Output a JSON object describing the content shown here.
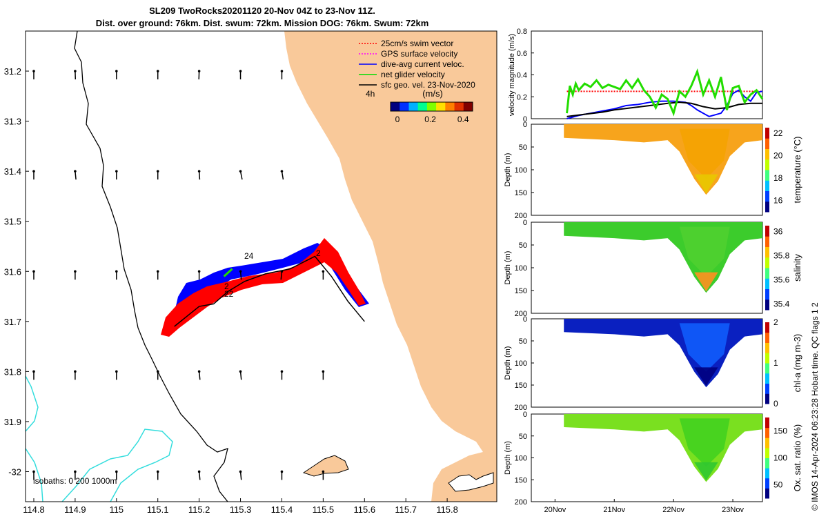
{
  "figure": {
    "title_line1": "SL209 TwoRocks20201120 20-Nov 04Z to 23-Nov 11Z.",
    "title_line2": "Dist. over ground: 76km. Dist. swum: 72km. Mission DOG: 76km. Swum: 72km",
    "credit": "© IMOS 14-Apr-2024 06:23:28 Hobart time. QC flags 1  2"
  },
  "colors": {
    "land": "#f9c99a",
    "blue_patch": "#0000ff",
    "red_patch": "#ff0000",
    "green_line": "#22dd00",
    "isobath": "#33dddd",
    "black": "#000000"
  },
  "chart_data": [
    {
      "type": "map",
      "xticks": [
        "114.8",
        "114.9",
        "115",
        "115.1",
        "115.2",
        "115.3",
        "115.4",
        "115.5",
        "115.6",
        "115.7",
        "115.8"
      ],
      "yticks": [
        "31.2",
        "31.3",
        "31.4",
        "31.5",
        "31.6",
        "31.7",
        "31.8",
        "31.9",
        "-32"
      ],
      "xlim": [
        114.78,
        115.92
      ],
      "ylim": [
        31.12,
        32.06
      ],
      "legend": [
        {
          "label": "25cm/s swim vector",
          "color": "#ff0000",
          "style": "dotted"
        },
        {
          "label": "GPS surface velocity",
          "color": "#ff00ff",
          "style": "dotted"
        },
        {
          "label": "dive-avg current veloc.",
          "color": "#0000ff",
          "style": "solid"
        },
        {
          "label": "net glider velocity",
          "color": "#00dd00",
          "style": "solid"
        },
        {
          "label": "sfc geo. vel. 23-Nov-2020",
          "color": "#000000",
          "style": "solid"
        }
      ],
      "legend_extra": "4h",
      "colorbar": {
        "label": "(m/s)",
        "ticks": [
          "0",
          "0.2",
          "0.4"
        ],
        "range": [
          0,
          0.5
        ]
      },
      "track_day_labels": [
        "24",
        "22",
        "2",
        "2"
      ],
      "isobath_label": "isobaths: 0   200  1000m",
      "track": [
        [
          115.14,
          31.71
        ],
        [
          115.17,
          31.69
        ],
        [
          115.2,
          31.67
        ],
        [
          115.235,
          31.665
        ],
        [
          115.27,
          31.64
        ],
        [
          115.31,
          31.62
        ],
        [
          115.36,
          31.605
        ],
        [
          115.42,
          31.595
        ],
        [
          115.48,
          31.57
        ],
        [
          115.52,
          31.61
        ],
        [
          115.56,
          31.66
        ],
        [
          115.6,
          31.7
        ]
      ],
      "geo_arrows": [
        [
          114.8,
          31.2,
          0,
          1
        ],
        [
          114.9,
          31.2,
          0.1,
          1
        ],
        [
          115.0,
          31.2,
          0,
          1
        ],
        [
          115.1,
          31.2,
          0,
          1
        ],
        [
          115.2,
          31.2,
          -0.1,
          1
        ],
        [
          115.3,
          31.2,
          0,
          1
        ],
        [
          115.4,
          31.2,
          0,
          1
        ],
        [
          114.8,
          31.4,
          0,
          1
        ],
        [
          114.9,
          31.4,
          0.3,
          1
        ],
        [
          115.0,
          31.4,
          0,
          1
        ],
        [
          115.1,
          31.4,
          0,
          1
        ],
        [
          115.2,
          31.4,
          0.2,
          1
        ],
        [
          115.3,
          31.4,
          0.6,
          1
        ],
        [
          115.4,
          31.4,
          0.5,
          1
        ],
        [
          114.8,
          31.6,
          0,
          1
        ],
        [
          114.9,
          31.6,
          0,
          1
        ],
        [
          115.0,
          31.6,
          0,
          1
        ],
        [
          115.1,
          31.6,
          0,
          1
        ],
        [
          115.2,
          31.6,
          0,
          1
        ],
        [
          115.3,
          31.6,
          0.3,
          1
        ],
        [
          115.4,
          31.6,
          -0.3,
          1
        ],
        [
          115.5,
          31.6,
          0,
          1
        ],
        [
          114.8,
          31.8,
          0,
          1
        ],
        [
          114.9,
          31.8,
          0,
          1
        ],
        [
          115.0,
          31.8,
          0,
          1
        ],
        [
          115.1,
          31.8,
          0,
          1
        ],
        [
          115.2,
          31.8,
          0.3,
          1
        ],
        [
          115.3,
          31.8,
          0.3,
          1
        ],
        [
          115.4,
          31.8,
          0,
          1
        ],
        [
          115.5,
          31.8,
          0,
          1
        ],
        [
          114.8,
          32.0,
          0,
          1
        ],
        [
          114.9,
          32.0,
          0,
          1
        ],
        [
          115.0,
          32.0,
          0,
          1
        ],
        [
          115.1,
          32.0,
          0,
          1
        ],
        [
          115.2,
          32.0,
          0.3,
          1
        ],
        [
          115.3,
          32.0,
          0.3,
          1
        ],
        [
          115.4,
          32.0,
          0,
          1
        ],
        [
          115.5,
          32.0,
          0,
          1
        ]
      ]
    },
    {
      "type": "line",
      "ylabel": "velocity magnitude (m/s)",
      "yticks": [
        "0",
        "0.2",
        "0.4",
        "0.6",
        "0.8"
      ],
      "ylim": [
        0,
        0.8
      ],
      "x_days": [
        20.2,
        23.5
      ],
      "series": [
        {
          "color": "#ff0000",
          "dash": "2 2",
          "x": [
            20.2,
            23.5
          ],
          "y": [
            0.25,
            0.25
          ]
        },
        {
          "color": "#0000ff",
          "x": [
            20.2,
            20.4,
            20.6,
            20.8,
            21.0,
            21.2,
            21.4,
            21.6,
            21.8,
            22.0,
            22.2,
            22.3,
            22.4,
            22.6,
            22.8,
            22.9,
            23.0,
            23.1,
            23.2,
            23.3,
            23.4,
            23.5
          ],
          "y": [
            0.0,
            0.03,
            0.05,
            0.07,
            0.09,
            0.12,
            0.13,
            0.15,
            0.16,
            0.16,
            0.15,
            0.12,
            0.08,
            0.02,
            0.05,
            0.12,
            0.23,
            0.26,
            0.2,
            0.16,
            0.24,
            0.25
          ]
        },
        {
          "color": "#000000",
          "x": [
            20.2,
            20.5,
            20.8,
            21.0,
            21.3,
            21.6,
            21.9,
            22.1,
            22.3,
            22.5,
            22.7,
            22.9,
            23.1,
            23.3,
            23.5
          ],
          "y": [
            0.02,
            0.04,
            0.06,
            0.08,
            0.1,
            0.12,
            0.14,
            0.15,
            0.14,
            0.11,
            0.09,
            0.1,
            0.13,
            0.14,
            0.14
          ]
        },
        {
          "color": "#22dd00",
          "x": [
            20.2,
            20.25,
            20.3,
            20.35,
            20.4,
            20.5,
            20.6,
            20.7,
            20.8,
            20.9,
            21.0,
            21.1,
            21.2,
            21.3,
            21.4,
            21.5,
            21.6,
            21.7,
            21.8,
            21.9,
            22.0,
            22.1,
            22.2,
            22.3,
            22.4,
            22.5,
            22.6,
            22.7,
            22.8,
            22.9,
            23.0,
            23.1,
            23.2,
            23.3,
            23.4,
            23.5
          ],
          "y": [
            0.05,
            0.3,
            0.22,
            0.32,
            0.26,
            0.32,
            0.29,
            0.35,
            0.28,
            0.31,
            0.29,
            0.27,
            0.35,
            0.28,
            0.36,
            0.26,
            0.2,
            0.1,
            0.22,
            0.18,
            0.05,
            0.25,
            0.2,
            0.3,
            0.43,
            0.22,
            0.35,
            0.2,
            0.38,
            0.08,
            0.28,
            0.3,
            0.15,
            0.22,
            0.26,
            0.18
          ]
        }
      ]
    },
    {
      "type": "heatmap",
      "ylabel": "Depth (m)",
      "cblabel": "temperature (°C)",
      "cbticks": [
        "16",
        "18",
        "20",
        "22"
      ],
      "clim": [
        15,
        22.5
      ],
      "yticks": [
        "0",
        "50",
        "100",
        "150",
        "200"
      ]
    },
    {
      "type": "heatmap",
      "ylabel": "Depth (m)",
      "cblabel": "salinity",
      "cbticks": [
        "35.4",
        "35.6",
        "35.8",
        "36"
      ],
      "clim": [
        35.35,
        36.05
      ],
      "yticks": [
        "0",
        "50",
        "100",
        "150",
        "200"
      ]
    },
    {
      "type": "heatmap",
      "ylabel": "Depth (m)",
      "cblabel": "chl-a (mg m-3)",
      "cbticks": [
        "0",
        "1",
        "2"
      ],
      "clim": [
        0,
        2
      ],
      "yticks": [
        "0",
        "50",
        "100",
        "150",
        "200"
      ]
    },
    {
      "type": "heatmap",
      "ylabel": "Depth (m)",
      "cblabel": "Ox. sat. ratio (%)",
      "cbticks": [
        "50",
        "100",
        "150"
      ],
      "clim": [
        25,
        175
      ],
      "yticks": [
        "0",
        "50",
        "100",
        "150",
        "200"
      ],
      "xticks": [
        "20Nov",
        "21Nov",
        "22Nov",
        "23Nov"
      ]
    }
  ]
}
